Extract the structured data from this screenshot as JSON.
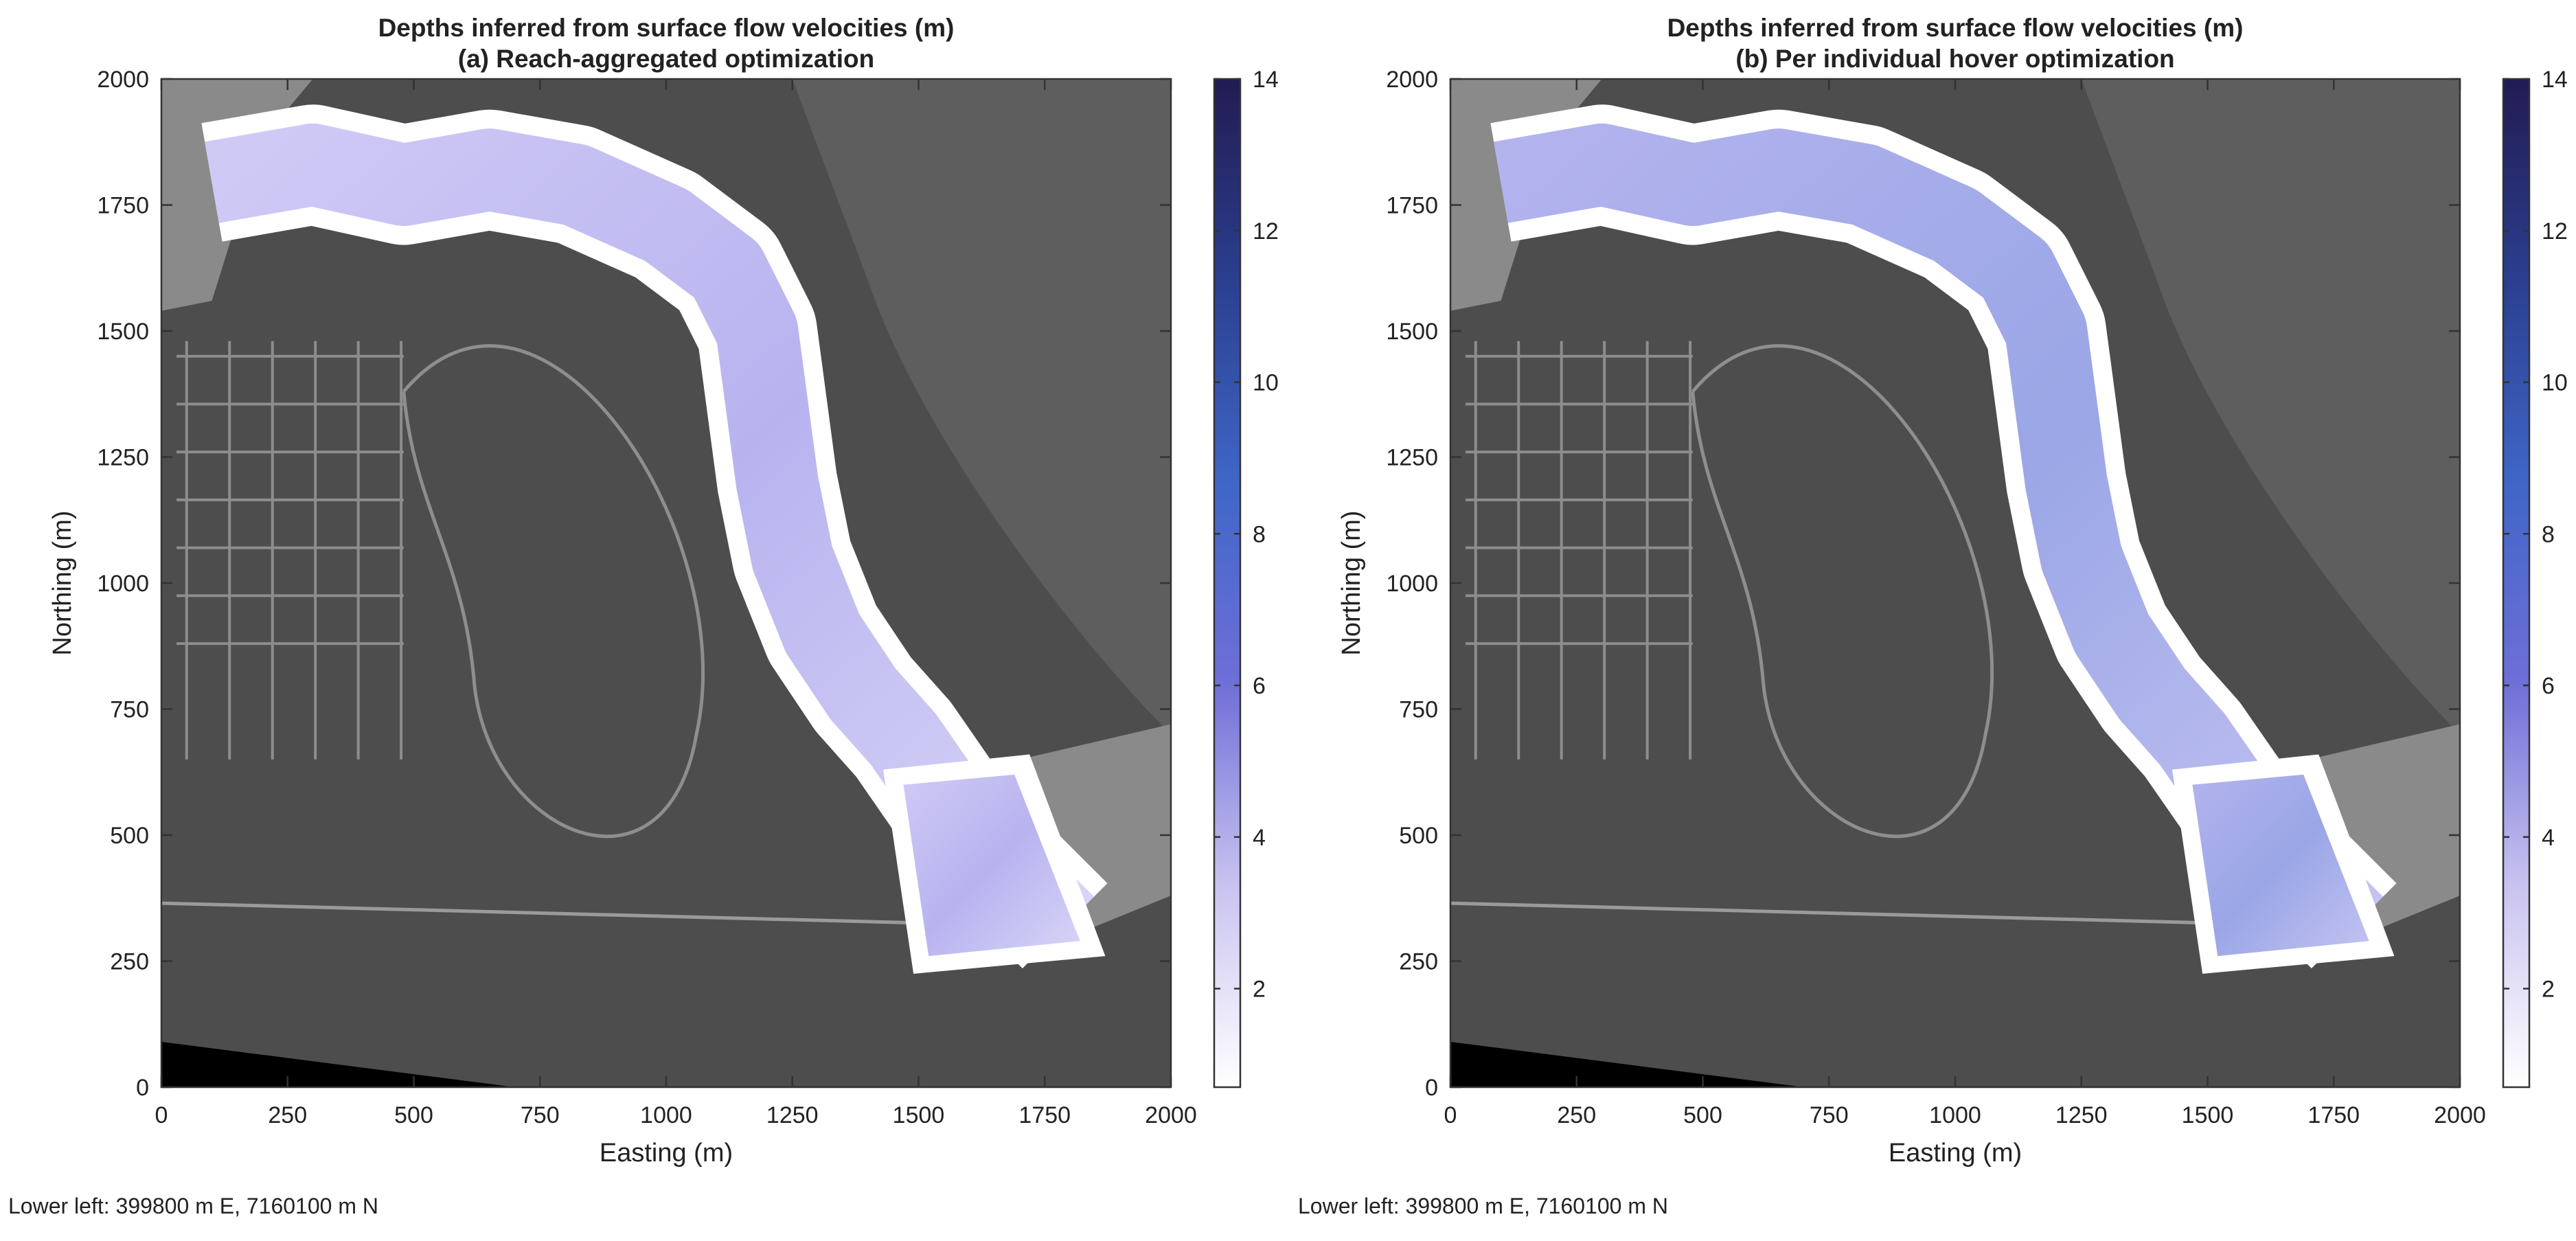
{
  "chart_data": [
    {
      "type": "heatmap",
      "title": "Depths inferred from surface flow velocities (m)",
      "subtitle": "(a) Reach-aggregated optimization",
      "xlabel": "Easting (m)",
      "ylabel": "Northing (m)",
      "xlim": [
        0,
        2000
      ],
      "ylim": [
        0,
        2000
      ],
      "xticks": [
        0,
        250,
        500,
        750,
        1000,
        1250,
        1500,
        1750,
        2000
      ],
      "yticks": [
        0,
        250,
        500,
        750,
        1000,
        1250,
        1500,
        1750,
        2000
      ],
      "colorbar": {
        "min": 0.7,
        "max": 14,
        "ticks": [
          2,
          4,
          6,
          8,
          10,
          12,
          14
        ],
        "colors": [
          "#ffffff",
          "#c9c3f0",
          "#6f6fd8",
          "#3f66c7",
          "#2b3f8f",
          "#221b52"
        ]
      },
      "footer": "Lower left: 399800 m E, 7160100 m N"
    },
    {
      "type": "heatmap",
      "title": "Depths inferred from surface flow velocities (m)",
      "subtitle": "(b) Per individual hover optimization",
      "xlabel": "Easting (m)",
      "ylabel": "Northing (m)",
      "xlim": [
        0,
        2000
      ],
      "ylim": [
        0,
        2000
      ],
      "xticks": [
        0,
        250,
        500,
        750,
        1000,
        1250,
        1500,
        1750,
        2000
      ],
      "yticks": [
        0,
        250,
        500,
        750,
        1000,
        1250,
        1500,
        1750,
        2000
      ],
      "colorbar": {
        "min": 0.7,
        "max": 14,
        "ticks": [
          2,
          4,
          6,
          8,
          10,
          12,
          14
        ],
        "colors": [
          "#ffffff",
          "#c9c3f0",
          "#6f6fd8",
          "#3f66c7",
          "#2b3f8f",
          "#221b52"
        ]
      },
      "footer": "Lower left: 399800 m E, 7160100 m N"
    }
  ]
}
